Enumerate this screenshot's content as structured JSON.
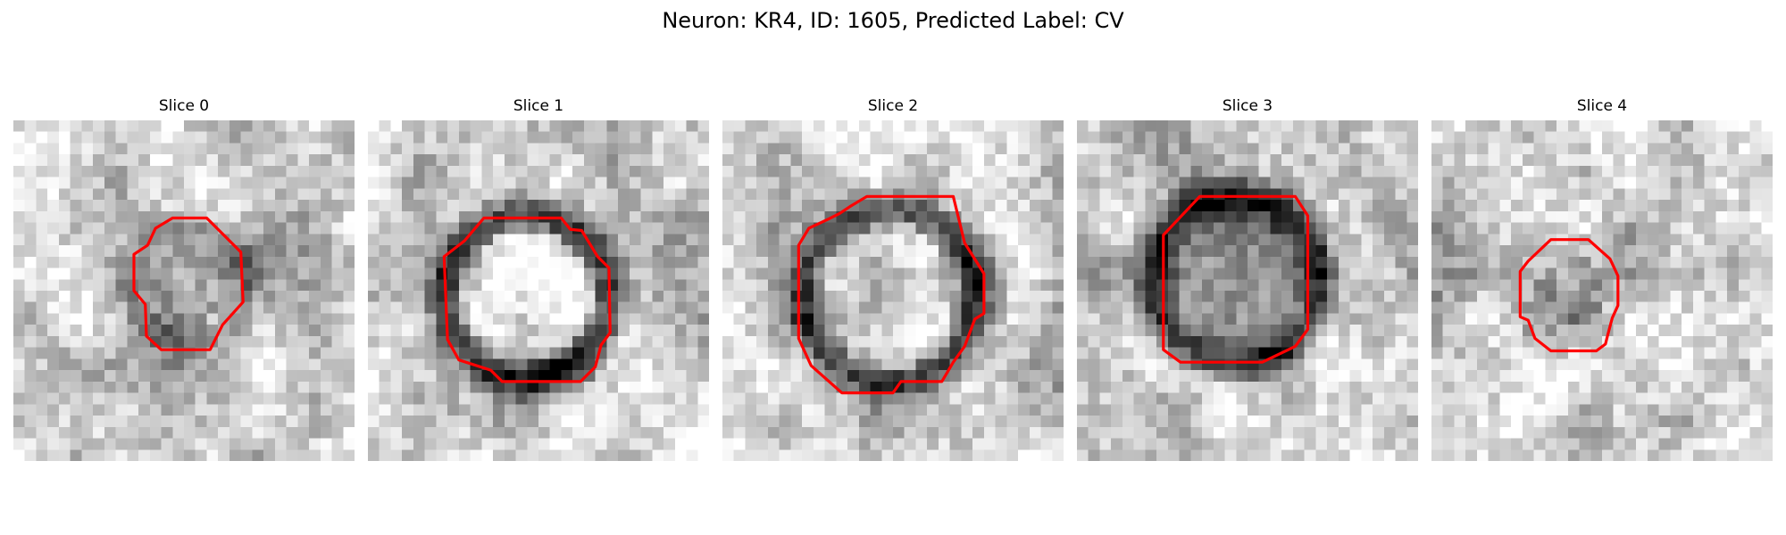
{
  "figure": {
    "title": "Neuron: KR4, ID: 1605, Predicted Label: CV",
    "contour_color": "#ff0000"
  },
  "panels": [
    {
      "title": "Slice 0",
      "seed": 11,
      "ring": 0.45,
      "center_dark": 0.35
    },
    {
      "title": "Slice 1",
      "seed": 23,
      "ring": 0.85,
      "center_dark": -0.25
    },
    {
      "title": "Slice 2",
      "seed": 37,
      "ring": 0.75,
      "center_dark": -0.15
    },
    {
      "title": "Slice 3",
      "seed": 51,
      "ring": 0.9,
      "center_dark": 0.2
    },
    {
      "title": "Slice 4",
      "seed": 67,
      "ring": 0.2,
      "center_dark": 0.45
    }
  ]
}
